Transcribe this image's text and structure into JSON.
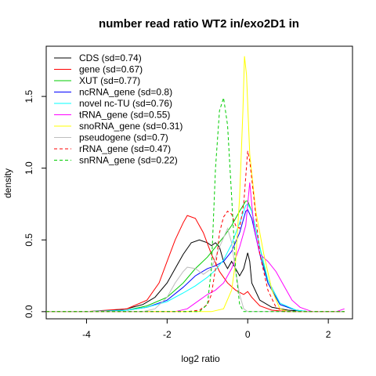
{
  "chart_data": {
    "type": "line",
    "title": "number read ratio WT2 in/exo2D1 in",
    "xlabel": "log2 ratio",
    "ylabel": "density",
    "xlim": [
      -5.0,
      2.6
    ],
    "ylim": [
      -0.05,
      1.85
    ],
    "x_ticks": [
      -4,
      -2,
      0,
      2
    ],
    "y_ticks": [
      0.0,
      0.5,
      1.0,
      1.5
    ],
    "x_tick_labels": [
      "-4",
      "-2",
      "0",
      "2"
    ],
    "y_tick_labels": [
      "0.0",
      "0.5",
      "1.0",
      "1.5"
    ],
    "legend_position": "top-left",
    "grid": false,
    "series": [
      {
        "name": "CDS (sd=0.74)",
        "color": "#000000",
        "dash": "solid",
        "points": [
          [
            -5.0,
            0.0
          ],
          [
            -4.0,
            0.0
          ],
          [
            -3.5,
            0.005
          ],
          [
            -3.0,
            0.02
          ],
          [
            -2.6,
            0.05
          ],
          [
            -2.3,
            0.1
          ],
          [
            -2.0,
            0.2
          ],
          [
            -1.8,
            0.3
          ],
          [
            -1.6,
            0.4
          ],
          [
            -1.4,
            0.48
          ],
          [
            -1.2,
            0.5
          ],
          [
            -1.0,
            0.48
          ],
          [
            -0.9,
            0.46
          ],
          [
            -0.8,
            0.48
          ],
          [
            -0.7,
            0.45
          ],
          [
            -0.6,
            0.35
          ],
          [
            -0.5,
            0.3
          ],
          [
            -0.4,
            0.35
          ],
          [
            -0.3,
            0.3
          ],
          [
            -0.2,
            0.25
          ],
          [
            -0.1,
            0.3
          ],
          [
            0.0,
            0.41
          ],
          [
            0.05,
            0.35
          ],
          [
            0.1,
            0.2
          ],
          [
            0.3,
            0.08
          ],
          [
            0.6,
            0.03
          ],
          [
            1.0,
            0.01
          ],
          [
            1.5,
            0.0
          ],
          [
            2.4,
            0.0
          ]
        ]
      },
      {
        "name": "gene (sd=0.67)",
        "color": "#ff0000",
        "dash": "solid",
        "points": [
          [
            -5.0,
            0.0
          ],
          [
            -4.0,
            0.0
          ],
          [
            -3.0,
            0.02
          ],
          [
            -2.5,
            0.08
          ],
          [
            -2.2,
            0.2
          ],
          [
            -2.0,
            0.35
          ],
          [
            -1.8,
            0.5
          ],
          [
            -1.6,
            0.62
          ],
          [
            -1.5,
            0.67
          ],
          [
            -1.3,
            0.65
          ],
          [
            -1.1,
            0.55
          ],
          [
            -0.9,
            0.4
          ],
          [
            -0.7,
            0.28
          ],
          [
            -0.5,
            0.2
          ],
          [
            -0.3,
            0.15
          ],
          [
            -0.1,
            0.12
          ],
          [
            0.0,
            0.14
          ],
          [
            0.1,
            0.1
          ],
          [
            0.3,
            0.04
          ],
          [
            0.6,
            0.01
          ],
          [
            1.0,
            0.0
          ],
          [
            2.4,
            0.0
          ]
        ]
      },
      {
        "name": "XUT (sd=0.77)",
        "color": "#00cc00",
        "dash": "solid",
        "points": [
          [
            -5.0,
            0.0
          ],
          [
            -4.0,
            0.0
          ],
          [
            -3.0,
            0.01
          ],
          [
            -2.5,
            0.04
          ],
          [
            -2.0,
            0.1
          ],
          [
            -1.6,
            0.2
          ],
          [
            -1.3,
            0.3
          ],
          [
            -1.0,
            0.38
          ],
          [
            -0.8,
            0.45
          ],
          [
            -0.6,
            0.52
          ],
          [
            -0.4,
            0.6
          ],
          [
            -0.2,
            0.7
          ],
          [
            -0.05,
            0.77
          ],
          [
            0.0,
            0.77
          ],
          [
            0.1,
            0.7
          ],
          [
            0.3,
            0.45
          ],
          [
            0.5,
            0.2
          ],
          [
            0.8,
            0.05
          ],
          [
            1.2,
            0.01
          ],
          [
            1.5,
            0.0
          ],
          [
            2.4,
            0.0
          ]
        ]
      },
      {
        "name": "ncRNA_gene (sd=0.8)",
        "color": "#0000ff",
        "dash": "solid",
        "points": [
          [
            -5.0,
            0.0
          ],
          [
            -4.0,
            0.0
          ],
          [
            -3.0,
            0.01
          ],
          [
            -2.5,
            0.03
          ],
          [
            -2.0,
            0.08
          ],
          [
            -1.6,
            0.17
          ],
          [
            -1.3,
            0.25
          ],
          [
            -1.0,
            0.3
          ],
          [
            -0.8,
            0.32
          ],
          [
            -0.6,
            0.35
          ],
          [
            -0.4,
            0.42
          ],
          [
            -0.2,
            0.55
          ],
          [
            -0.05,
            0.7
          ],
          [
            0.0,
            0.71
          ],
          [
            0.1,
            0.65
          ],
          [
            0.3,
            0.4
          ],
          [
            0.5,
            0.2
          ],
          [
            0.8,
            0.05
          ],
          [
            1.2,
            0.01
          ],
          [
            1.5,
            0.0
          ],
          [
            2.4,
            0.0
          ]
        ]
      },
      {
        "name": "novel nc-TU (sd=0.76)",
        "color": "#00ffff",
        "dash": "solid",
        "points": [
          [
            -5.0,
            0.0
          ],
          [
            -4.0,
            0.0
          ],
          [
            -3.0,
            0.01
          ],
          [
            -2.5,
            0.03
          ],
          [
            -2.0,
            0.07
          ],
          [
            -1.6,
            0.13
          ],
          [
            -1.3,
            0.18
          ],
          [
            -1.0,
            0.24
          ],
          [
            -0.8,
            0.29
          ],
          [
            -0.6,
            0.36
          ],
          [
            -0.4,
            0.47
          ],
          [
            -0.2,
            0.62
          ],
          [
            -0.05,
            0.74
          ],
          [
            0.0,
            0.75
          ],
          [
            0.1,
            0.7
          ],
          [
            0.3,
            0.45
          ],
          [
            0.5,
            0.22
          ],
          [
            0.8,
            0.06
          ],
          [
            1.2,
            0.01
          ],
          [
            1.5,
            0.0
          ],
          [
            2.4,
            0.0
          ]
        ]
      },
      {
        "name": "tRNA_gene (sd=0.55)",
        "color": "#ff00ff",
        "dash": "solid",
        "points": [
          [
            -5.0,
            0.0
          ],
          [
            -1.8,
            0.0
          ],
          [
            -1.5,
            0.02
          ],
          [
            -1.2,
            0.08
          ],
          [
            -1.0,
            0.12
          ],
          [
            -0.8,
            0.15
          ],
          [
            -0.6,
            0.2
          ],
          [
            -0.4,
            0.3
          ],
          [
            -0.2,
            0.45
          ],
          [
            -0.05,
            0.6
          ],
          [
            0.05,
            0.9
          ],
          [
            0.15,
            0.6
          ],
          [
            0.3,
            0.4
          ],
          [
            0.5,
            0.35
          ],
          [
            0.7,
            0.28
          ],
          [
            0.9,
            0.18
          ],
          [
            1.1,
            0.08
          ],
          [
            1.3,
            0.03
          ],
          [
            1.6,
            0.0
          ],
          [
            2.0,
            0.0
          ],
          [
            2.2,
            0.0
          ],
          [
            2.4,
            0.02
          ]
        ]
      },
      {
        "name": "snoRNA_gene (sd=0.31)",
        "color": "#ffff00",
        "dash": "solid",
        "points": [
          [
            -5.0,
            0.0
          ],
          [
            -1.5,
            0.0
          ],
          [
            -0.9,
            0.0
          ],
          [
            -0.6,
            0.02
          ],
          [
            -0.4,
            0.15
          ],
          [
            -0.3,
            0.35
          ],
          [
            -0.2,
            0.8
          ],
          [
            -0.12,
            1.4
          ],
          [
            -0.08,
            1.78
          ],
          [
            -0.03,
            1.65
          ],
          [
            0.05,
            1.1
          ],
          [
            0.2,
            0.7
          ],
          [
            0.4,
            0.4
          ],
          [
            0.6,
            0.15
          ],
          [
            0.8,
            0.02
          ],
          [
            1.0,
            0.0
          ],
          [
            2.4,
            0.0
          ]
        ]
      },
      {
        "name": "pseudogene (sd=0.7)",
        "color": "#bebebe",
        "dash": "solid",
        "points": [
          [
            -5.0,
            0.0
          ],
          [
            -2.6,
            0.0
          ],
          [
            -2.3,
            0.02
          ],
          [
            -2.0,
            0.1
          ],
          [
            -1.8,
            0.2
          ],
          [
            -1.6,
            0.28
          ],
          [
            -1.5,
            0.31
          ],
          [
            -1.3,
            0.3
          ],
          [
            -1.1,
            0.26
          ],
          [
            -0.9,
            0.3
          ],
          [
            -0.7,
            0.45
          ],
          [
            -0.5,
            0.58
          ],
          [
            -0.4,
            0.48
          ],
          [
            -0.3,
            0.28
          ],
          [
            -0.2,
            0.12
          ],
          [
            -0.1,
            0.02
          ],
          [
            0.0,
            0.0
          ],
          [
            2.4,
            0.0
          ]
        ]
      },
      {
        "name": "rRNA_gene (sd=0.47)",
        "color": "#ff0000",
        "dash": "dashed",
        "points": [
          [
            -5.0,
            0.0
          ],
          [
            -1.5,
            0.0
          ],
          [
            -1.2,
            0.01
          ],
          [
            -1.0,
            0.05
          ],
          [
            -0.9,
            0.12
          ],
          [
            -0.8,
            0.3
          ],
          [
            -0.7,
            0.55
          ],
          [
            -0.6,
            0.66
          ],
          [
            -0.5,
            0.7
          ],
          [
            -0.4,
            0.68
          ],
          [
            -0.3,
            0.6
          ],
          [
            -0.2,
            0.58
          ],
          [
            -0.1,
            0.75
          ],
          [
            0.0,
            1.12
          ],
          [
            0.05,
            1.05
          ],
          [
            0.15,
            0.8
          ],
          [
            0.3,
            0.4
          ],
          [
            0.5,
            0.15
          ],
          [
            0.7,
            0.03
          ],
          [
            0.9,
            0.0
          ],
          [
            2.4,
            0.0
          ]
        ]
      },
      {
        "name": "snRNA_gene (sd=0.22)",
        "color": "#00cc00",
        "dash": "dashed",
        "points": [
          [
            -5.0,
            0.0
          ],
          [
            -1.2,
            0.0
          ],
          [
            -1.0,
            0.05
          ],
          [
            -0.9,
            0.3
          ],
          [
            -0.8,
            1.0
          ],
          [
            -0.7,
            1.4
          ],
          [
            -0.6,
            1.49
          ],
          [
            -0.5,
            1.3
          ],
          [
            -0.4,
            0.8
          ],
          [
            -0.3,
            0.3
          ],
          [
            -0.2,
            0.05
          ],
          [
            -0.1,
            0.0
          ],
          [
            2.4,
            0.0
          ]
        ]
      }
    ]
  }
}
